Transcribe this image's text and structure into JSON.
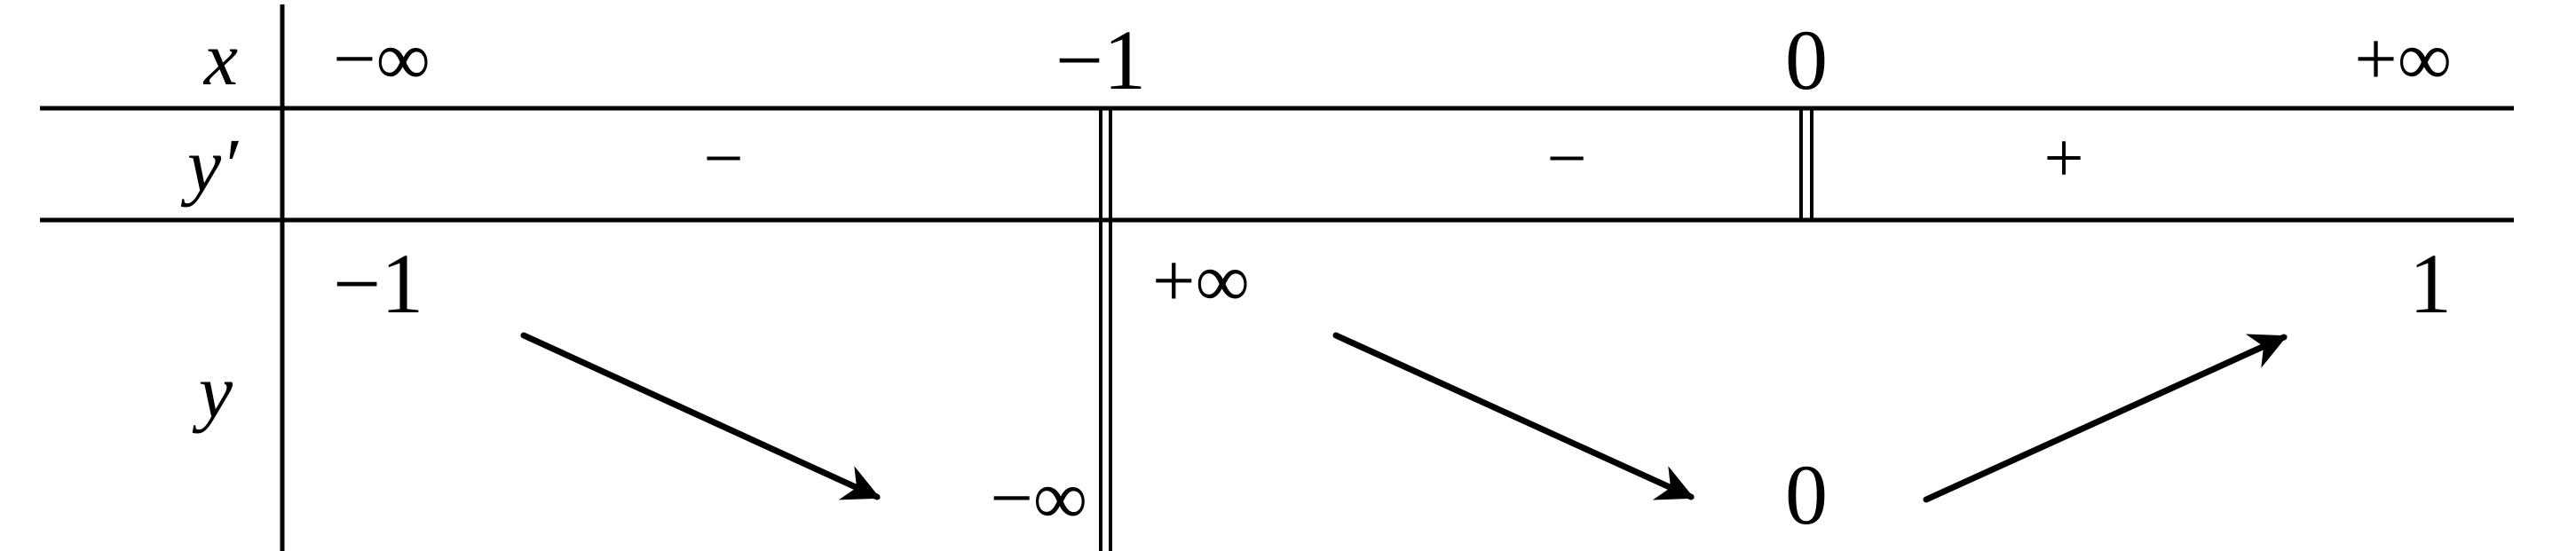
{
  "table": {
    "row_labels": {
      "x": "x",
      "y_prime": "y′",
      "y": "y"
    },
    "x_values": [
      "−∞",
      "−1",
      "0",
      "+∞"
    ],
    "sign_row": [
      "−",
      "−",
      "+"
    ],
    "y_values": {
      "start": "−1",
      "left_of_neg1": "−∞",
      "right_of_neg1": "+∞",
      "at_zero": "0",
      "end": "1"
    },
    "arrows": [
      "decreasing",
      "decreasing",
      "increasing"
    ],
    "double_bar_at": [
      "−1",
      "0"
    ]
  },
  "colors": {
    "ink": "#000000",
    "background": "#ffffff"
  }
}
